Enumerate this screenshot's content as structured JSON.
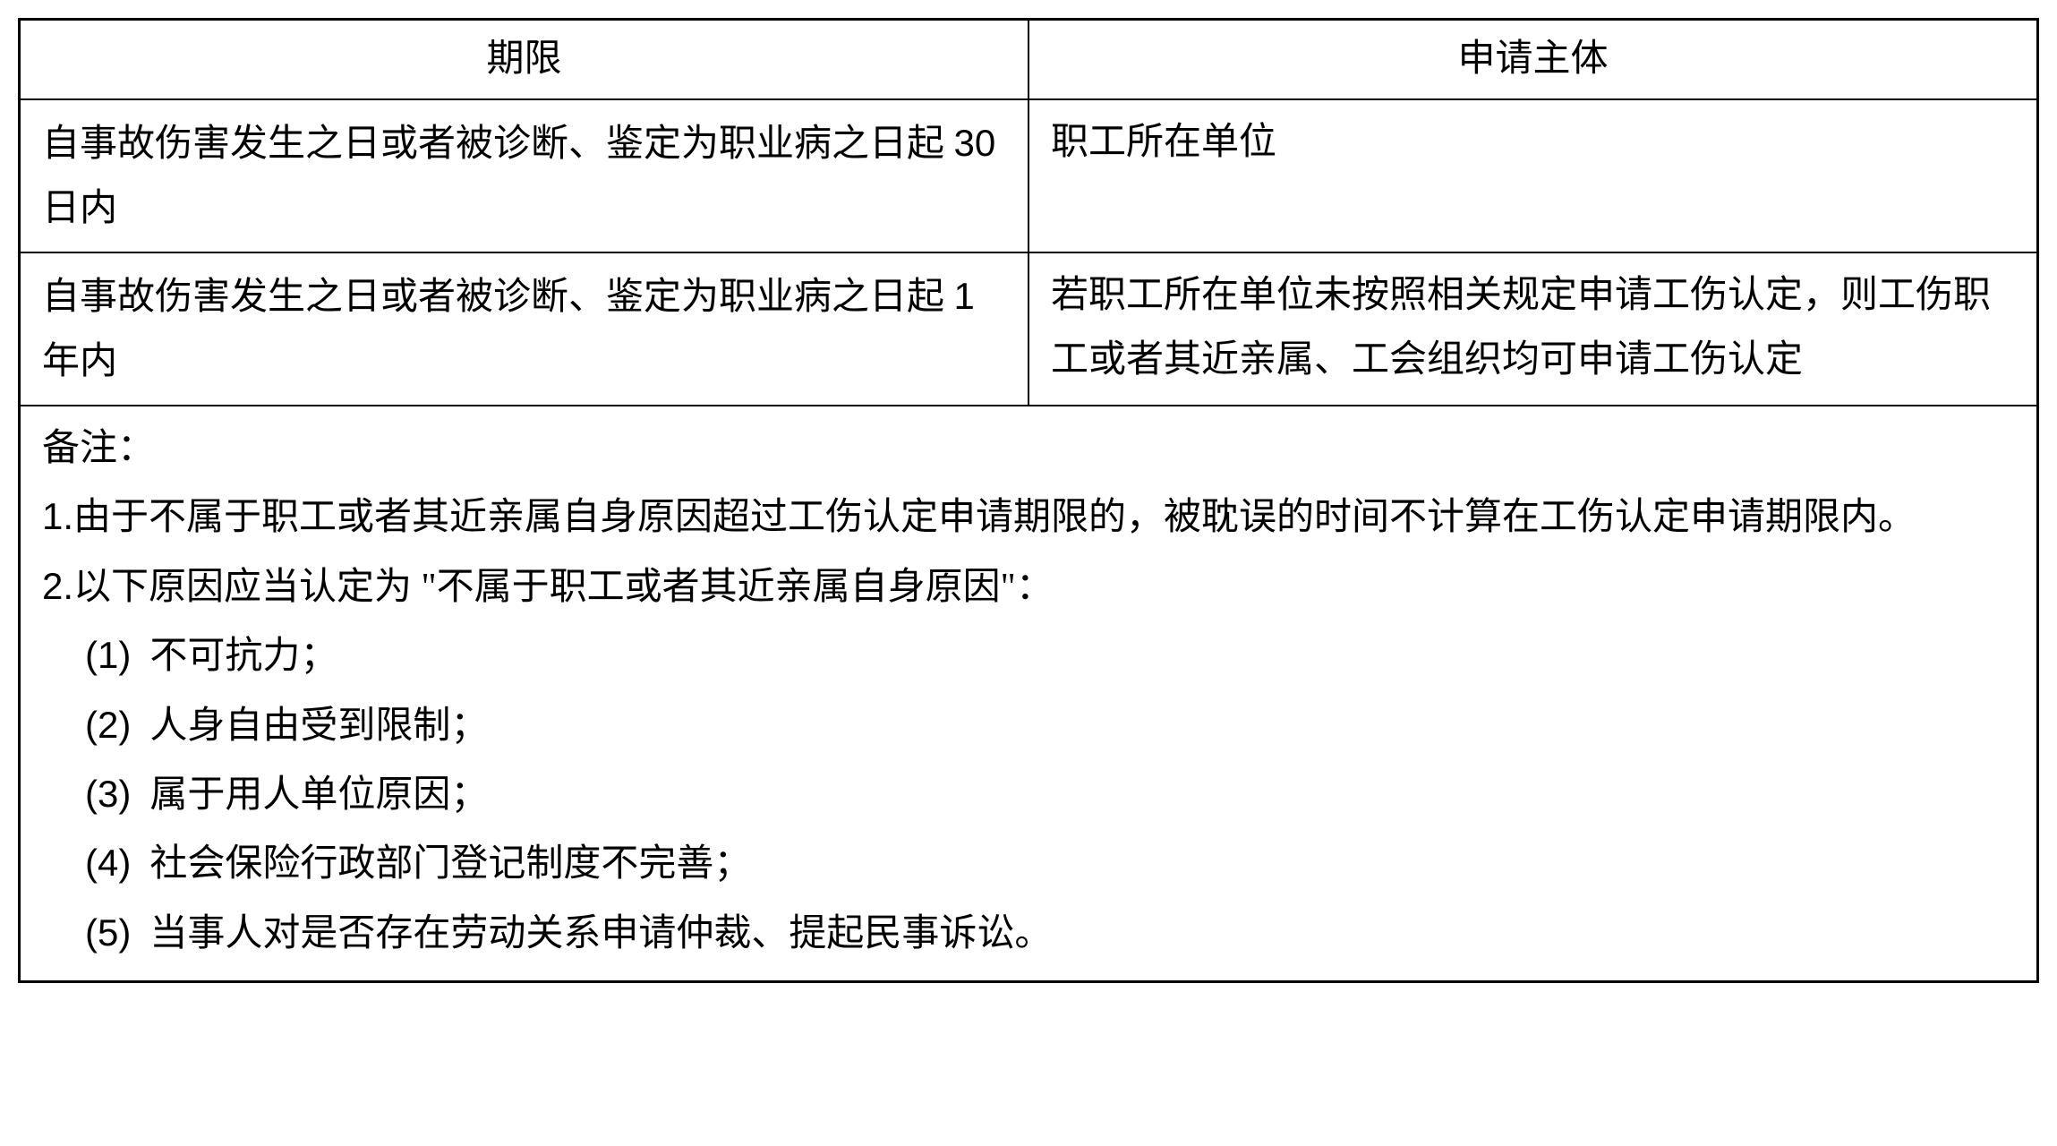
{
  "table": {
    "headers": {
      "col1": "期限",
      "col2": "申请主体"
    },
    "rows": [
      {
        "period_prefix": "自事故伤害发生之日或者被诊断、鉴定为职业病之日起 ",
        "period_num": "30",
        "period_suffix": " 日内",
        "subject": "职工所在单位"
      },
      {
        "period_prefix": "自事故伤害发生之日或者被诊断、鉴定为职业病之日起 ",
        "period_num": "1",
        "period_suffix": " 年内",
        "subject": "若职工所在单位未按照相关规定申请工伤认定，则工伤职工或者其近亲属、工会组织均可申请工伤认定"
      }
    ],
    "notes": {
      "header": "备注：",
      "item1_num": "1.",
      "item1_text": "由于不属于职工或者其近亲属自身原因超过工伤认定申请期限的，被耽误的时间不计算在工伤认定申请期限内。",
      "item2_num": "2.",
      "item2_text": "以下原因应当认定为 \"不属于职工或者其近亲属自身原因\"：",
      "sub1_num": "(1)",
      "sub1_text": "不可抗力；",
      "sub2_num": "(2)",
      "sub2_text": "人身自由受到限制；",
      "sub3_num": "(3)",
      "sub3_text": "属于用人单位原因；",
      "sub4_num": "(4)",
      "sub4_text": "社会保险行政部门登记制度不完善；",
      "sub5_num": "(5)",
      "sub5_text": "当事人对是否存在劳动关系申请仲裁、提起民事诉讼。"
    }
  },
  "styling": {
    "border_color": "#000000",
    "background_color": "#ffffff",
    "text_color": "#000000",
    "font_size": 42,
    "line_height": 1.7,
    "border_width_outer": 3,
    "border_width_inner": 2
  }
}
